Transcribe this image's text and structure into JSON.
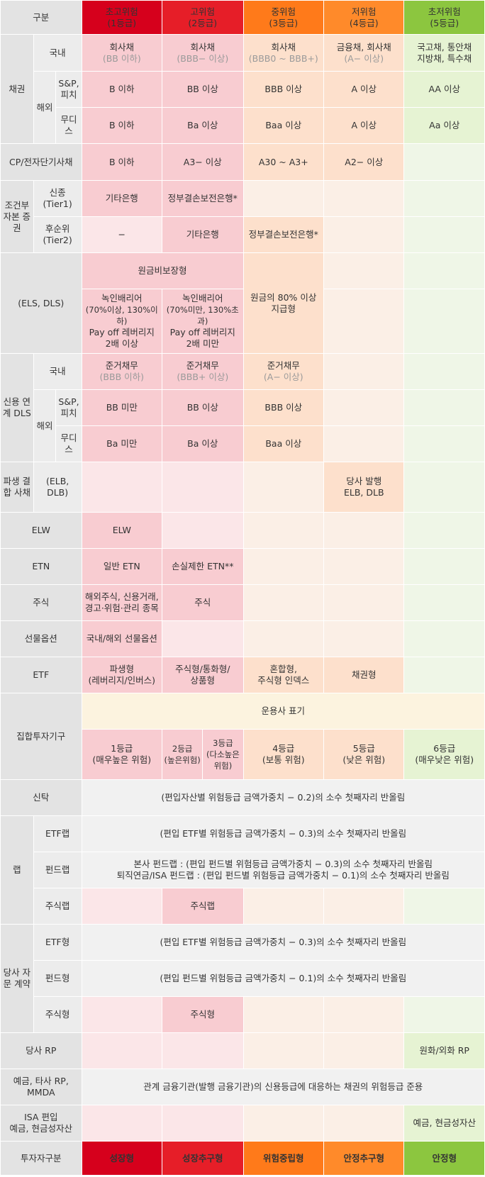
{
  "header": {
    "category": "구분",
    "grades": [
      {
        "name": "초고위험",
        "grade": "(1등급)",
        "color": "#d6001c"
      },
      {
        "name": "고위험",
        "grade": "(2등급)",
        "color": "#e61e28"
      },
      {
        "name": "중위험",
        "grade": "(3등급)",
        "color": "#ff7a1a"
      },
      {
        "name": "저위험",
        "grade": "(4등급)",
        "color": "#ff8a2a"
      },
      {
        "name": "초저위험",
        "grade": "(5등급)",
        "color": "#8cc63f"
      }
    ]
  },
  "bonds": {
    "label": "채권",
    "domestic": {
      "label": "국내",
      "c1": [
        "회사채",
        "(BB 이하)"
      ],
      "c2": [
        "회사채",
        "(BBB− 이상)"
      ],
      "c3": [
        "회사채",
        "(BBB0 ~ BBB+)"
      ],
      "c4": [
        "금융채, 회사채",
        "(A− 이상)"
      ],
      "c5": [
        "국고채, 통안채",
        "지방채, 특수채"
      ]
    },
    "overseas_label": "해외",
    "sp": {
      "label": "S&P, 피치",
      "c1": "B 이하",
      "c2": "BB 이상",
      "c3": "BBB 이상",
      "c4": "A 이상",
      "c5": "AA 이상"
    },
    "moodys": {
      "label": "무디스",
      "c1": "B 이하",
      "c2": "Ba 이상",
      "c3": "Baa 이상",
      "c4": "A 이상",
      "c5": "Aa 이상"
    }
  },
  "cp": {
    "label": "CP/전자단기사채",
    "c1": "B 이하",
    "c2": "A3− 이상",
    "c3": "A30 ~ A3+",
    "c4": "A2− 이상"
  },
  "capital": {
    "label": "조건부 자본 증권",
    "tier1": {
      "label": [
        "신종",
        "(Tier1)"
      ],
      "c1": "기타은행",
      "c2": "정부결손보전은행*"
    },
    "tier2": {
      "label": [
        "후순위",
        "(Tier2)"
      ],
      "c1": "−",
      "c2": "기타은행",
      "c3": "정부결손보전은행*"
    }
  },
  "els": {
    "label": "(ELS, DLS)",
    "nonguaranteed": "원금비보장형",
    "c1": [
      "녹인배리어",
      "(70%이상, 130%이하)",
      "Pay off 레버리지",
      "2배 이상"
    ],
    "c2": [
      "녹인배리어",
      "(70%미만, 130%초과)",
      "Pay off 레버리지",
      "2배 미만"
    ],
    "c3": [
      "원금의 80% 이상",
      "지급형"
    ]
  },
  "credit_dls": {
    "label": "신용 연계 DLS",
    "domestic": {
      "label": "국내",
      "c1": [
        "준거채무",
        "(BBB 이하)"
      ],
      "c2": [
        "준거채무",
        "(BBB+ 이상)"
      ],
      "c3": [
        "준거채무",
        "(A− 이상)"
      ]
    },
    "overseas_label": "해외",
    "sp": {
      "label": "S&P, 피치",
      "c1": "BB 미만",
      "c2": "BB 이상",
      "c3": "BBB 이상"
    },
    "moodys": {
      "label": "무디스",
      "c1": "Ba 미만",
      "c2": "Ba 이상",
      "c3": "Baa 이상"
    }
  },
  "derivative_bond": {
    "label": "파생 결합 사채",
    "sub": "(ELB, DLB)",
    "c4": [
      "당사 발행",
      "ELB, DLB"
    ]
  },
  "elw": {
    "label": "ELW",
    "c1": "ELW"
  },
  "etn": {
    "label": "ETN",
    "c1": "일반 ETN",
    "c2": "손실제한 ETN**"
  },
  "stock": {
    "label": "주식",
    "c1": [
      "해외주식, 신용거래,",
      "경고·위험·관리 종목"
    ],
    "c2": "주식"
  },
  "futures": {
    "label": "선물옵션",
    "c1": "국내/해외 선물옵션"
  },
  "etf": {
    "label": "ETF",
    "c1": [
      "파생형",
      "(레버리지/인버스)"
    ],
    "c2": [
      "주식형/통화형/",
      "상품형"
    ],
    "c3": [
      "혼합형,",
      "주식형 인덱스"
    ],
    "c4": "채권형"
  },
  "fund": {
    "label": "집합투자기구",
    "manager": "운용사 표기",
    "g1": [
      "1등급",
      "(매우높은 위험)"
    ],
    "g2": [
      "2등급",
      "(높은위험)"
    ],
    "g3": [
      "3등급",
      "(다소높은",
      "위험)"
    ],
    "g4": [
      "4등급",
      "(보통 위험)"
    ],
    "g5": [
      "5등급",
      "(낮은 위험)"
    ],
    "g6": [
      "6등급",
      "(매우낮은 위험)"
    ]
  },
  "trust": {
    "label": "신탁",
    "text": "(편입자산별 위험등급 금액가중치 − 0.2)의 소수 첫째자리 반올림"
  },
  "wrap": {
    "label": "랩",
    "etf": {
      "label": "ETF랩",
      "text": "(편입 ETF별 위험등급 금액가중치 − 0.3)의 소수 첫째자리 반올림"
    },
    "fund": {
      "label": "펀드랩",
      "text": [
        "본사 펀드랩 : (편입 펀드별 위험등급 금액가중치 − 0.3)의 소수 첫째자리 반올림",
        "퇴직연금/ISA 펀드랩 : (편입 펀드별 위험등급 금액가중치 − 0.1)의 소수 첫째자리 반올림"
      ]
    },
    "stock": {
      "label": "주식랩",
      "c2": "주식랩"
    }
  },
  "discretionary": {
    "label": "당사 자문 계약",
    "etf": {
      "label": "ETF형",
      "text": "(편입 ETF별 위험등급 금액가중치 − 0.3)의 소수 첫째자리 반올림"
    },
    "fund": {
      "label": "펀드형",
      "text": "(편입 펀드별 위험등급 금액가중치 − 0.1)의 소수 첫째자리 반올림"
    },
    "stock": {
      "label": "주식형",
      "c2": "주식형"
    }
  },
  "rp": {
    "label": "당사 RP",
    "c5": "원화/외화 RP"
  },
  "deposit": {
    "label": [
      "예금, 타사 RP,",
      "MMDA"
    ],
    "text": "관계 금융기관(발행 금융기관)의 신용등급에 대응하는 채권의 위험등급 준용"
  },
  "isa": {
    "label": [
      "ISA 편입",
      "예금, 현금성자산"
    ],
    "c5": "예금, 현금성자산"
  },
  "investor": {
    "label": "투자자구분",
    "types": [
      "성장형",
      "성장추구형",
      "위험중립형",
      "안정추구형",
      "안정형"
    ]
  }
}
